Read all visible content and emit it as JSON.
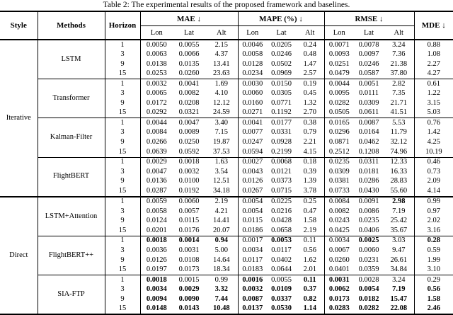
{
  "caption": "Table 2: The experimental results of the proposed framework and baselines.",
  "header": {
    "style": "Style",
    "methods": "Methods",
    "horizon": "Horizon",
    "groups": [
      {
        "label": "MAE ↓"
      },
      {
        "label": "MAPE (%) ↓"
      },
      {
        "label": "RMSE ↓"
      }
    ],
    "mde": "MDE ↓",
    "sub_labels": [
      "Lon",
      "Lat",
      "Alt"
    ]
  },
  "sections": [
    {
      "style": "Iterative",
      "methods": [
        {
          "name": "LSTM",
          "rows": [
            {
              "horizon": "1",
              "values": [
                "0.0050",
                "0.0055",
                "2.15",
                "0.0046",
                "0.0205",
                "0.24",
                "0.0071",
                "0.0078",
                "3.24",
                "0.88"
              ],
              "bold": []
            },
            {
              "horizon": "3",
              "values": [
                "0.0063",
                "0.0066",
                "4.37",
                "0.0058",
                "0.0246",
                "0.48",
                "0.0093",
                "0.0097",
                "7.36",
                "1.08"
              ],
              "bold": []
            },
            {
              "horizon": "9",
              "values": [
                "0.0138",
                "0.0135",
                "13.41",
                "0.0128",
                "0.0502",
                "1.47",
                "0.0251",
                "0.0246",
                "21.38",
                "2.27"
              ],
              "bold": []
            },
            {
              "horizon": "15",
              "values": [
                "0.0253",
                "0.0260",
                "23.63",
                "0.0234",
                "0.0969",
                "2.57",
                "0.0479",
                "0.0587",
                "37.80",
                "4.27"
              ],
              "bold": []
            }
          ]
        },
        {
          "name": "Transformer",
          "rows": [
            {
              "horizon": "1",
              "values": [
                "0.0032",
                "0.0041",
                "1.69",
                "0.0030",
                "0.0150",
                "0.19",
                "0.0044",
                "0.0051",
                "2.82",
                "0.61"
              ],
              "bold": []
            },
            {
              "horizon": "3",
              "values": [
                "0.0065",
                "0.0082",
                "4.10",
                "0.0060",
                "0.0305",
                "0.45",
                "0.0095",
                "0.0111",
                "7.35",
                "1.22"
              ],
              "bold": []
            },
            {
              "horizon": "9",
              "values": [
                "0.0172",
                "0.0208",
                "12.12",
                "0.0160",
                "0.0771",
                "1.32",
                "0.0282",
                "0.0309",
                "21.71",
                "3.15"
              ],
              "bold": []
            },
            {
              "horizon": "15",
              "values": [
                "0.0292",
                "0.0321",
                "24.59",
                "0.0271",
                "0.1192",
                "2.70",
                "0.0505",
                "0.0611",
                "41.51",
                "5.03"
              ],
              "bold": []
            }
          ]
        },
        {
          "name": "Kalman-Filter",
          "rows": [
            {
              "horizon": "1",
              "values": [
                "0.0044",
                "0.0047",
                "3.40",
                "0.0041",
                "0.0177",
                "0.38",
                "0.0165",
                "0.0087",
                "5.53",
                "0.76"
              ],
              "bold": []
            },
            {
              "horizon": "3",
              "values": [
                "0.0084",
                "0.0089",
                "7.15",
                "0.0077",
                "0.0331",
                "0.79",
                "0.0296",
                "0.0164",
                "11.79",
                "1.42"
              ],
              "bold": []
            },
            {
              "horizon": "9",
              "values": [
                "0.0266",
                "0.0250",
                "19.87",
                "0.0247",
                "0.0928",
                "2.21",
                "0.0871",
                "0.0462",
                "32.12",
                "4.25"
              ],
              "bold": []
            },
            {
              "horizon": "15",
              "values": [
                "0.0639",
                "0.0592",
                "37.53",
                "0.0594",
                "0.2199",
                "4.15",
                "0.2512",
                "0.1208",
                "74.96",
                "10.19"
              ],
              "bold": []
            }
          ]
        },
        {
          "name": "FlightBERT",
          "rows": [
            {
              "horizon": "1",
              "values": [
                "0.0029",
                "0.0018",
                "1.63",
                "0.0027",
                "0.0068",
                "0.18",
                "0.0235",
                "0.0311",
                "12.33",
                "0.46"
              ],
              "bold": []
            },
            {
              "horizon": "3",
              "values": [
                "0.0047",
                "0.0032",
                "3.54",
                "0.0043",
                "0.0121",
                "0.39",
                "0.0309",
                "0.0181",
                "16.33",
                "0.73"
              ],
              "bold": []
            },
            {
              "horizon": "9",
              "values": [
                "0.0136",
                "0.0100",
                "12.51",
                "0.0126",
                "0.0373",
                "1.39",
                "0.0381",
                "0.0286",
                "28.83",
                "2.09"
              ],
              "bold": []
            },
            {
              "horizon": "15",
              "values": [
                "0.0287",
                "0.0192",
                "34.18",
                "0.0267",
                "0.0715",
                "3.78",
                "0.0733",
                "0.0430",
                "55.60",
                "4.14"
              ],
              "bold": []
            }
          ]
        }
      ]
    },
    {
      "style": "Direct",
      "methods": [
        {
          "name": "LSTM+Attention",
          "rows": [
            {
              "horizon": "1",
              "values": [
                "0.0059",
                "0.0060",
                "2.19",
                "0.0054",
                "0.0225",
                "0.25",
                "0.0084",
                "0.0091",
                "2.98",
                "0.99"
              ],
              "bold": [
                8
              ]
            },
            {
              "horizon": "3",
              "values": [
                "0.0058",
                "0.0057",
                "4.21",
                "0.0054",
                "0.0216",
                "0.47",
                "0.0082",
                "0.0086",
                "7.19",
                "0.97"
              ],
              "bold": []
            },
            {
              "horizon": "9",
              "values": [
                "0.0124",
                "0.0115",
                "14.41",
                "0.0115",
                "0.0428",
                "1.58",
                "0.0243",
                "0.0235",
                "25.42",
                "2.02"
              ],
              "bold": []
            },
            {
              "horizon": "15",
              "values": [
                "0.0201",
                "0.0176",
                "20.07",
                "0.0186",
                "0.0658",
                "2.19",
                "0.0425",
                "0.0406",
                "35.67",
                "3.16"
              ],
              "bold": []
            }
          ]
        },
        {
          "name": "FlightBERT++",
          "rows": [
            {
              "horizon": "1",
              "values": [
                "0.0018",
                "0.0014",
                "0.94",
                "0.0017",
                "0.0053",
                "0.11",
                "0.0034",
                "0.0025",
                "3.03",
                "0.28"
              ],
              "bold": [
                0,
                1,
                2,
                4,
                7,
                9
              ]
            },
            {
              "horizon": "3",
              "values": [
                "0.0036",
                "0.0031",
                "5.00",
                "0.0034",
                "0.0117",
                "0.56",
                "0.0067",
                "0.0060",
                "9.47",
                "0.59"
              ],
              "bold": []
            },
            {
              "horizon": "9",
              "values": [
                "0.0126",
                "0.0108",
                "14.64",
                "0.0117",
                "0.0402",
                "1.62",
                "0.0260",
                "0.0231",
                "26.61",
                "1.99"
              ],
              "bold": []
            },
            {
              "horizon": "15",
              "values": [
                "0.0197",
                "0.0173",
                "18.34",
                "0.0183",
                "0.0644",
                "2.01",
                "0.0401",
                "0.0359",
                "34.84",
                "3.10"
              ],
              "bold": []
            }
          ]
        },
        {
          "name": "SIA-FTP",
          "rows": [
            {
              "horizon": "1",
              "values": [
                "0.0018",
                "0.0015",
                "0.99",
                "0.0016",
                "0.0055",
                "0.11",
                "0.0031",
                "0.0028",
                "3.24",
                "0.29"
              ],
              "bold": [
                0,
                3,
                5,
                6
              ]
            },
            {
              "horizon": "3",
              "values": [
                "0.0034",
                "0.0029",
                "3.32",
                "0.0032",
                "0.0109",
                "0.37",
                "0.0062",
                "0.0054",
                "7.19",
                "0.56"
              ],
              "bold": [
                0,
                1,
                2,
                3,
                4,
                5,
                6,
                7,
                8,
                9
              ]
            },
            {
              "horizon": "9",
              "values": [
                "0.0094",
                "0.0090",
                "7.44",
                "0.0087",
                "0.0337",
                "0.82",
                "0.0173",
                "0.0182",
                "15.47",
                "1.58"
              ],
              "bold": [
                0,
                1,
                2,
                3,
                4,
                5,
                6,
                7,
                8,
                9
              ]
            },
            {
              "horizon": "15",
              "values": [
                "0.0148",
                "0.0143",
                "10.48",
                "0.0137",
                "0.0530",
                "1.14",
                "0.0283",
                "0.0282",
                "22.08",
                "2.46"
              ],
              "bold": [
                0,
                1,
                2,
                3,
                4,
                5,
                6,
                7,
                8,
                9
              ]
            }
          ]
        }
      ]
    }
  ]
}
